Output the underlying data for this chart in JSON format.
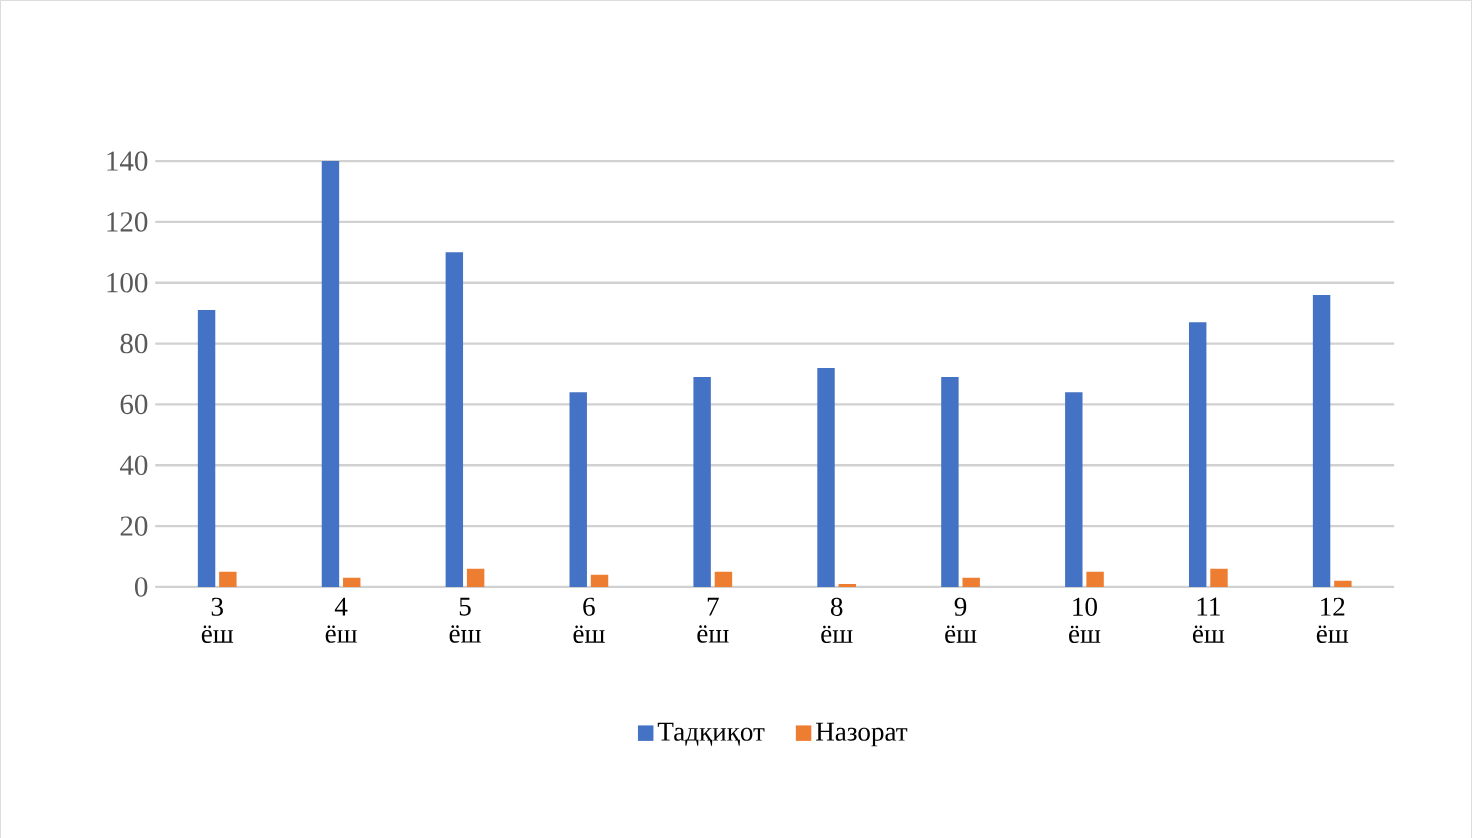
{
  "chart_data": {
    "type": "bar",
    "categories": [
      "3 ёш",
      "4 ёш",
      "5 ёш",
      "6 ёш",
      "7 ёш",
      "8 ёш",
      "9 ёш",
      "10 ёш",
      "11 ёш",
      "12 ёш"
    ],
    "series": [
      {
        "name": "Тадқиқот",
        "color": "#4472c4",
        "values": [
          91,
          140,
          110,
          64,
          69,
          72,
          69,
          64,
          87,
          96
        ]
      },
      {
        "name": "Назорат",
        "color": "#ed7d31",
        "values": [
          5,
          3,
          6,
          4,
          5,
          1,
          3,
          5,
          6,
          2
        ]
      }
    ],
    "ylim": [
      0,
      140
    ],
    "yticks": [
      0,
      20,
      40,
      60,
      80,
      100,
      120,
      140
    ],
    "grid": "y",
    "legend": "bottom"
  }
}
